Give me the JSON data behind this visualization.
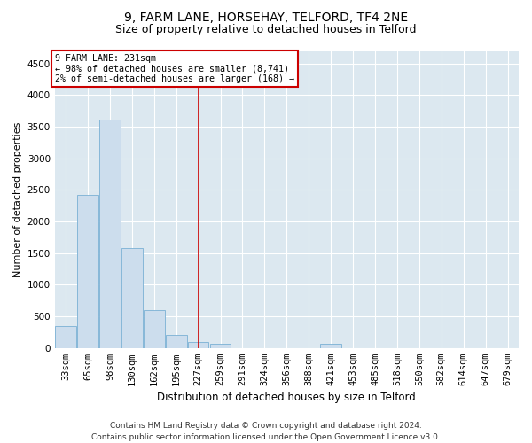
{
  "title1": "9, FARM LANE, HORSEHAY, TELFORD, TF4 2NE",
  "title2": "Size of property relative to detached houses in Telford",
  "xlabel": "Distribution of detached houses by size in Telford",
  "ylabel": "Number of detached properties",
  "categories": [
    "33sqm",
    "65sqm",
    "98sqm",
    "130sqm",
    "162sqm",
    "195sqm",
    "227sqm",
    "259sqm",
    "291sqm",
    "324sqm",
    "356sqm",
    "388sqm",
    "421sqm",
    "453sqm",
    "485sqm",
    "518sqm",
    "550sqm",
    "582sqm",
    "614sqm",
    "647sqm",
    "679sqm"
  ],
  "values": [
    350,
    2420,
    3620,
    1580,
    600,
    210,
    100,
    60,
    0,
    0,
    0,
    0,
    60,
    0,
    0,
    0,
    0,
    0,
    0,
    0,
    0
  ],
  "bar_color": "#ccdded",
  "bar_edge_color": "#7ab0d4",
  "vline_x_index": 6,
  "vline_color": "#cc0000",
  "annotation_line1": "9 FARM LANE: 231sqm",
  "annotation_line2": "← 98% of detached houses are smaller (8,741)",
  "annotation_line3": "2% of semi-detached houses are larger (168) →",
  "annotation_box_edgecolor": "#cc0000",
  "annotation_box_facecolor": "white",
  "ylim": [
    0,
    4700
  ],
  "yticks": [
    0,
    500,
    1000,
    1500,
    2000,
    2500,
    3000,
    3500,
    4000,
    4500
  ],
  "plot_bg_color": "#dce8f0",
  "grid_color": "#ffffff",
  "footer": "Contains HM Land Registry data © Crown copyright and database right 2024.\nContains public sector information licensed under the Open Government Licence v3.0.",
  "title1_fontsize": 10,
  "title2_fontsize": 9,
  "xlabel_fontsize": 8.5,
  "ylabel_fontsize": 8,
  "tick_fontsize": 7.5,
  "footer_fontsize": 6.5
}
